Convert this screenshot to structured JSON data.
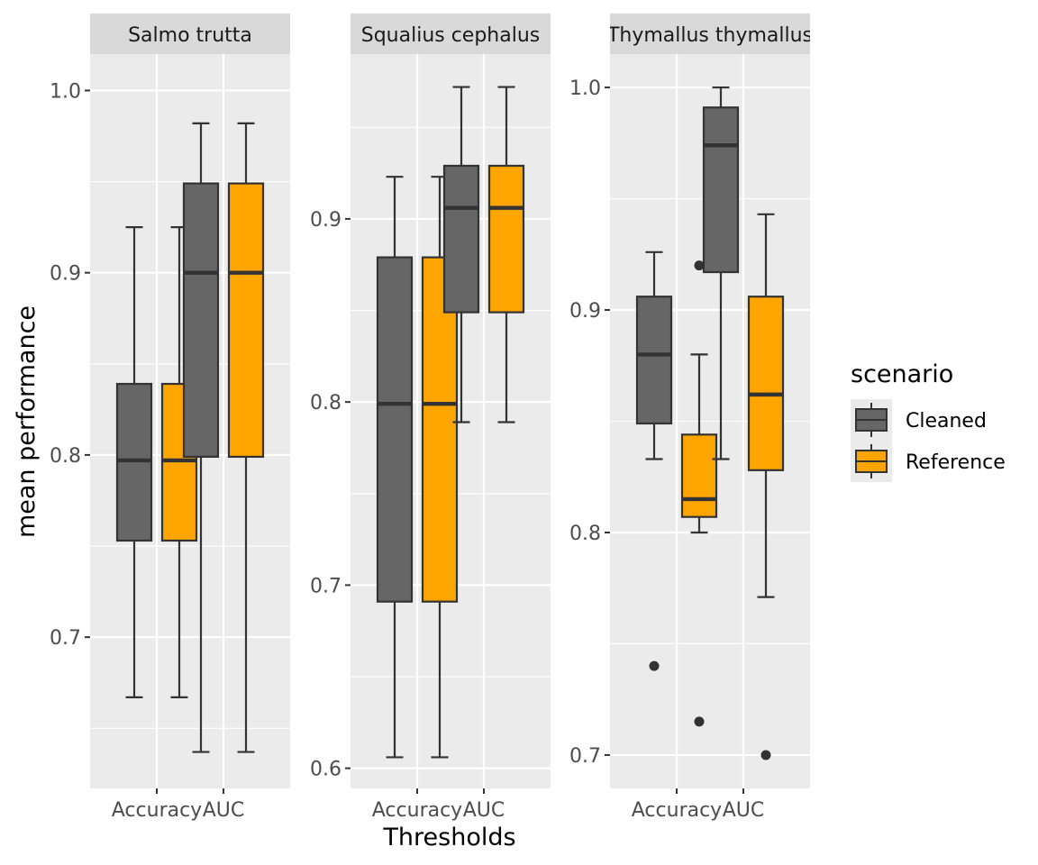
{
  "chart_data": {
    "type": "boxplot",
    "xlabel": "Thresholds",
    "ylabel": "mean performance",
    "categories": [
      "Accuracy",
      "AUC"
    ],
    "legend": {
      "title": "scenario",
      "position": "right",
      "entries": [
        {
          "name": "Cleaned",
          "color": "#666666"
        },
        {
          "name": "Reference",
          "color": "#FFA500"
        }
      ]
    },
    "grid": true,
    "facets": [
      {
        "title": "Salmo trutta",
        "ylim": [
          0.617,
          1.02
        ],
        "yticks": [
          0.7,
          0.8,
          0.9,
          1.0
        ],
        "ytick_labels": [
          "0.7",
          "0.8",
          "0.9",
          "1.0"
        ],
        "boxes": [
          {
            "category": "Accuracy",
            "series": "Cleaned",
            "min": 0.667,
            "q1": 0.753,
            "median": 0.797,
            "q3": 0.839,
            "max": 0.925,
            "outliers": []
          },
          {
            "category": "Accuracy",
            "series": "Reference",
            "min": 0.667,
            "q1": 0.753,
            "median": 0.797,
            "q3": 0.839,
            "max": 0.925,
            "outliers": []
          },
          {
            "category": "AUC",
            "series": "Cleaned",
            "min": 0.637,
            "q1": 0.799,
            "median": 0.9,
            "q3": 0.949,
            "max": 0.982,
            "outliers": []
          },
          {
            "category": "AUC",
            "series": "Reference",
            "min": 0.637,
            "q1": 0.799,
            "median": 0.9,
            "q3": 0.949,
            "max": 0.982,
            "outliers": []
          }
        ]
      },
      {
        "title": "Squalius cephalus",
        "ylim": [
          0.589,
          0.99
        ],
        "yticks": [
          0.6,
          0.7,
          0.8,
          0.9
        ],
        "ytick_labels": [
          "0.6",
          "0.7",
          "0.8",
          "0.9"
        ],
        "boxes": [
          {
            "category": "Accuracy",
            "series": "Cleaned",
            "min": 0.606,
            "q1": 0.691,
            "median": 0.799,
            "q3": 0.879,
            "max": 0.923,
            "outliers": []
          },
          {
            "category": "Accuracy",
            "series": "Reference",
            "min": 0.606,
            "q1": 0.691,
            "median": 0.799,
            "q3": 0.879,
            "max": 0.923,
            "outliers": []
          },
          {
            "category": "AUC",
            "series": "Cleaned",
            "min": 0.789,
            "q1": 0.849,
            "median": 0.906,
            "q3": 0.929,
            "max": 0.972,
            "outliers": []
          },
          {
            "category": "AUC",
            "series": "Reference",
            "min": 0.789,
            "q1": 0.849,
            "median": 0.906,
            "q3": 0.929,
            "max": 0.972,
            "outliers": []
          }
        ]
      },
      {
        "title": "Thymallus thymallus",
        "ylim": [
          0.685,
          1.015
        ],
        "yticks": [
          0.7,
          0.8,
          0.9,
          1.0
        ],
        "ytick_labels": [
          "0.7",
          "0.8",
          "0.9",
          "1.0"
        ],
        "boxes": [
          {
            "category": "Accuracy",
            "series": "Cleaned",
            "min": 0.833,
            "q1": 0.849,
            "median": 0.88,
            "q3": 0.906,
            "max": 0.926,
            "outliers": [
              0.74
            ]
          },
          {
            "category": "Accuracy",
            "series": "Reference",
            "min": 0.8,
            "q1": 0.807,
            "median": 0.815,
            "q3": 0.844,
            "max": 0.88,
            "outliers": [
              0.715,
              0.92
            ]
          },
          {
            "category": "AUC",
            "series": "Cleaned",
            "min": 0.833,
            "q1": 0.917,
            "median": 0.974,
            "q3": 0.991,
            "max": 1.0,
            "outliers": []
          },
          {
            "category": "AUC",
            "series": "Reference",
            "min": 0.771,
            "q1": 0.828,
            "median": 0.862,
            "q3": 0.906,
            "max": 0.943,
            "outliers": [
              0.7
            ]
          }
        ]
      }
    ]
  }
}
